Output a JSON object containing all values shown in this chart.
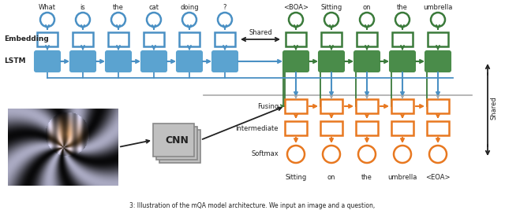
{
  "bg_color": "#ffffff",
  "blue": "#4a90c4",
  "blue_fill": "#5ba3d0",
  "green": "#3a7a3a",
  "green_fill": "#4a8c4a",
  "orange": "#e87820",
  "gray": "#aaaaaa",
  "black": "#222222",
  "question_words": [
    "What",
    "is",
    "the",
    "cat",
    "doing",
    "?"
  ],
  "answer_words": [
    "<BOA>",
    "Sitting",
    "on",
    "the",
    "umbrella"
  ],
  "output_words": [
    "Sitting",
    "on",
    "the",
    "umbrella",
    "<EOA>"
  ],
  "shared_label": "Shared",
  "cnn_label": "CNN",
  "embedding_label": "Embedding",
  "lstm_label": "LSTM",
  "fusing_label": "Fusing",
  "intermediate_label": "Intermediate",
  "softmax_label": "Softmax",
  "caption": "3: Illustration of the mQA model architecture. We input an image and a question,"
}
